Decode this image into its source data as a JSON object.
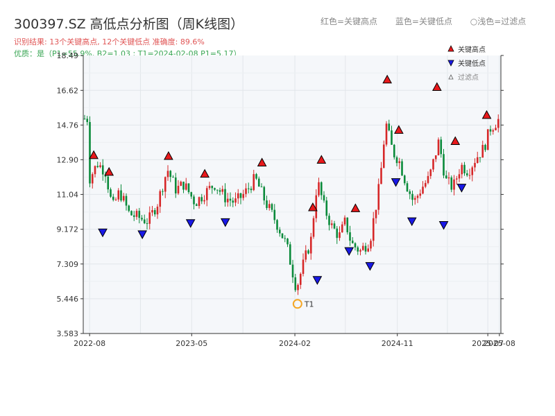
{
  "header": {
    "title": "300397.SZ 高低点分析图（周K线图）",
    "legend_red": "红色=关键高点",
    "legend_blue": "蓝色=关键低点",
    "legend_grey": "○浅色=过滤点",
    "result_line": "识别结果: 13个关键高点, 12个关键低点  准确度: 89.6%",
    "quality_line": "优质：是（P1=55.9%, B2=1.03 ; T1=2024-02-08 P1=5.17）"
  },
  "legend": {
    "high_label": "关键高点",
    "low_label": "关键低点",
    "filtered_label": "过滤点"
  },
  "colors": {
    "up": "#d62728",
    "down": "#0a8a3a",
    "high_marker": "#e8191c",
    "low_marker": "#1919e6",
    "t1_marker": "#f5a623",
    "plot_bg": "#f5f7fa",
    "grid": "#e2e6ea"
  },
  "chart_data": {
    "type": "candlestick",
    "title": "300397.SZ 高低点分析图（周K线图）",
    "y_ticks": [
      3.583,
      5.446,
      7.309,
      9.172,
      11.04,
      12.9,
      14.76,
      16.62,
      18.49
    ],
    "y_tick_labels": [
      "3.583",
      "5.446",
      "7.309",
      "9.172",
      "11.04",
      "12.90",
      "14.76",
      "16.62",
      "18.49"
    ],
    "ylim": [
      3.583,
      18.49
    ],
    "x_ticks": [
      "2022-08",
      "2023-05",
      "2024-02",
      "2024-11",
      "2025-07",
      "2025-08"
    ],
    "grid": true,
    "close_path": [
      [
        "2022-08-01",
        11.9
      ],
      [
        "2022-08-22",
        12.7
      ],
      [
        "2022-09-12",
        12.3
      ],
      [
        "2022-10-01",
        10.3
      ],
      [
        "2022-10-20",
        11.2
      ],
      [
        "2022-11-15",
        10.0
      ],
      [
        "2022-12-10",
        9.8
      ],
      [
        "2023-01-05",
        9.6
      ],
      [
        "2023-01-30",
        10.6
      ],
      [
        "2023-02-25",
        12.4
      ],
      [
        "2023-03-20",
        11.3
      ],
      [
        "2023-04-10",
        11.6
      ],
      [
        "2023-05-10",
        10.6
      ],
      [
        "2023-06-05",
        11.1
      ],
      [
        "2023-07-01",
        11.6
      ],
      [
        "2023-07-28",
        10.9
      ],
      [
        "2023-08-25",
        10.6
      ],
      [
        "2023-09-20",
        11.1
      ],
      [
        "2023-10-18",
        11.9
      ],
      [
        "2023-11-15",
        10.6
      ],
      [
        "2023-12-12",
        9.6
      ],
      [
        "2024-01-10",
        8.3
      ],
      [
        "2024-02-05",
        6.0
      ],
      [
        "2024-02-25",
        7.4
      ],
      [
        "2024-03-15",
        8.6
      ],
      [
        "2024-04-01",
        11.8
      ],
      [
        "2024-04-20",
        10.3
      ],
      [
        "2024-05-10",
        9.3
      ],
      [
        "2024-05-30",
        8.8
      ],
      [
        "2024-06-15",
        9.6
      ],
      [
        "2024-07-01",
        8.4
      ],
      [
        "2024-07-25",
        8.0
      ],
      [
        "2024-08-20",
        8.6
      ],
      [
        "2024-09-15",
        11.6
      ],
      [
        "2024-10-01",
        14.9
      ],
      [
        "2024-10-20",
        13.3
      ],
      [
        "2024-11-05",
        12.9
      ],
      [
        "2024-11-25",
        11.6
      ],
      [
        "2024-12-15",
        10.6
      ],
      [
        "2025-01-05",
        11.4
      ],
      [
        "2025-01-25",
        11.9
      ],
      [
        "2025-02-20",
        13.9
      ],
      [
        "2025-03-10",
        11.8
      ],
      [
        "2025-03-30",
        11.4
      ],
      [
        "2025-04-20",
        12.6
      ],
      [
        "2025-05-10",
        12.3
      ],
      [
        "2025-05-30",
        13.0
      ],
      [
        "2025-06-20",
        13.5
      ],
      [
        "2025-07-08",
        14.6
      ],
      [
        "2025-08-01",
        15.1
      ]
    ],
    "key_highs": [
      {
        "date": "2022-08-12",
        "price": 12.85
      },
      {
        "date": "2022-09-22",
        "price": 11.95
      },
      {
        "date": "2023-02-28",
        "price": 12.8
      },
      {
        "date": "2023-06-05",
        "price": 11.85
      },
      {
        "date": "2023-11-05",
        "price": 12.45
      },
      {
        "date": "2024-03-20",
        "price": 10.05
      },
      {
        "date": "2024-04-12",
        "price": 12.6
      },
      {
        "date": "2024-07-12",
        "price": 10.0
      },
      {
        "date": "2024-10-05",
        "price": 16.9
      },
      {
        "date": "2024-11-05",
        "price": 14.2
      },
      {
        "date": "2025-02-15",
        "price": 16.5
      },
      {
        "date": "2025-04-05",
        "price": 13.6
      },
      {
        "date": "2025-06-28",
        "price": 15.0
      }
    ],
    "key_lows": [
      {
        "date": "2022-09-05",
        "price": 9.3
      },
      {
        "date": "2022-12-20",
        "price": 9.2
      },
      {
        "date": "2023-04-28",
        "price": 9.8
      },
      {
        "date": "2023-07-30",
        "price": 9.85
      },
      {
        "date": "2024-04-01",
        "price": 6.75
      },
      {
        "date": "2024-06-25",
        "price": 8.3
      },
      {
        "date": "2024-08-20",
        "price": 7.5
      },
      {
        "date": "2024-10-28",
        "price": 12.0
      },
      {
        "date": "2024-12-10",
        "price": 9.9
      },
      {
        "date": "2025-03-05",
        "price": 9.7
      },
      {
        "date": "2025-04-22",
        "price": 11.7
      }
    ],
    "t1": {
      "label": "T1",
      "date": "2024-02-08",
      "price": 5.17
    }
  }
}
